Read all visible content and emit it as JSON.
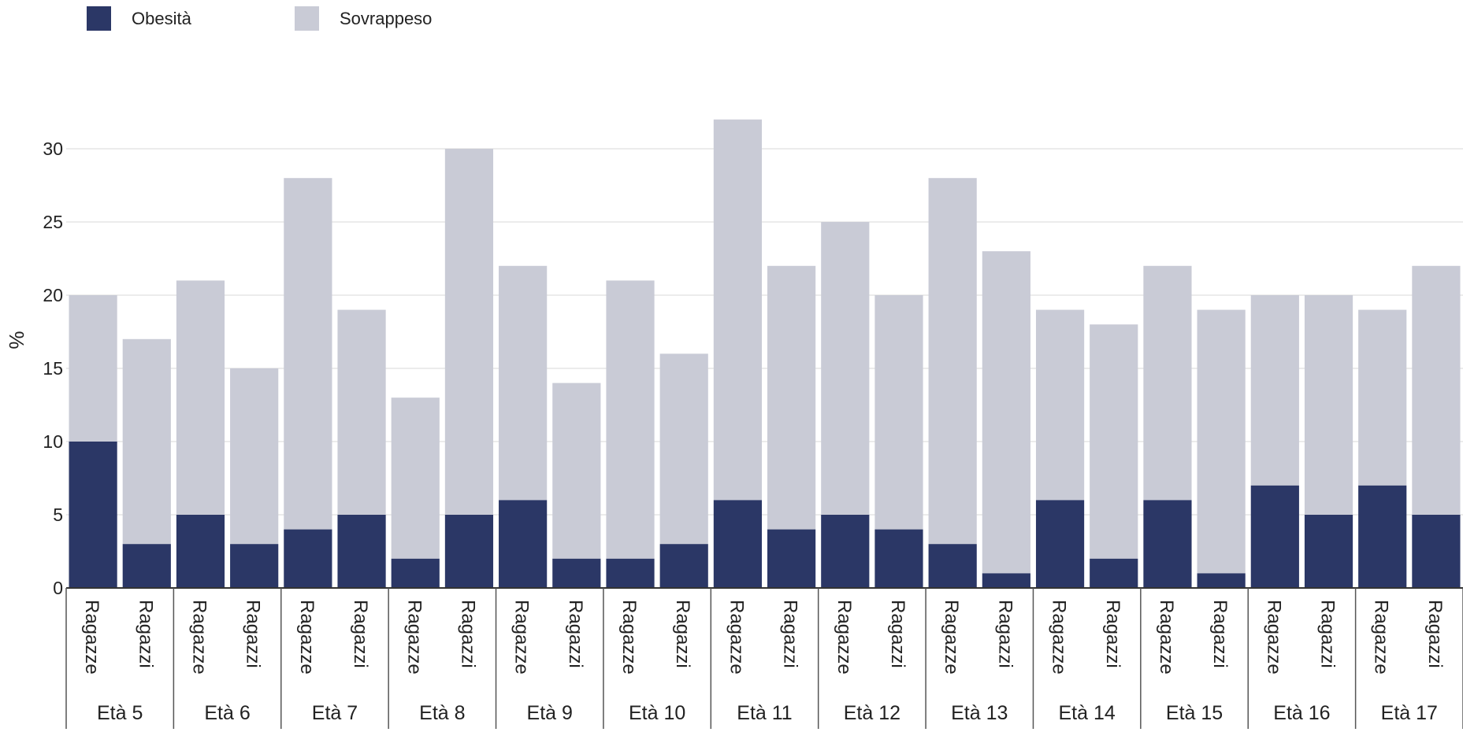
{
  "chart_data": {
    "type": "bar",
    "stacked": true,
    "ylabel": "%",
    "ylim": [
      0,
      32
    ],
    "yticks": [
      0,
      5,
      10,
      15,
      20,
      25,
      30
    ],
    "grid": true,
    "legend_position": "top-left",
    "groups": [
      "Età 5",
      "Età 6",
      "Età 7",
      "Età 8",
      "Età 9",
      "Età 10",
      "Età 11",
      "Età 12",
      "Età 13",
      "Età 14",
      "Età 15",
      "Età 16",
      "Età 17"
    ],
    "subcategories": [
      "Ragazze",
      "Ragazzi"
    ],
    "series": [
      {
        "name": "Obesità",
        "color": "#2b3766",
        "values": [
          10,
          3,
          5,
          3,
          4,
          5,
          2,
          5,
          6,
          2,
          2,
          3,
          6,
          4,
          5,
          4,
          3,
          1,
          6,
          2,
          6,
          1,
          7,
          5,
          7,
          5
        ]
      },
      {
        "name": "Sovrappeso",
        "color": "#c9cbd6",
        "values": [
          10,
          14,
          16,
          12,
          24,
          14,
          11,
          25,
          16,
          12,
          19,
          13,
          26,
          18,
          20,
          16,
          25,
          22,
          13,
          16,
          16,
          18,
          13,
          15,
          12,
          17
        ]
      }
    ]
  }
}
